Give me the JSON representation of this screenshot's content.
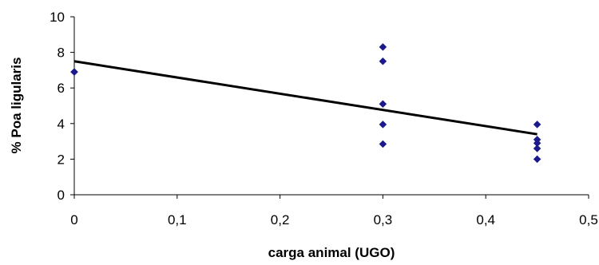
{
  "chart_data": {
    "type": "scatter",
    "xlabel": "carga animal (UGO)",
    "ylabel": "% Poa ligularis",
    "xlim": [
      0,
      0.5
    ],
    "ylim": [
      0,
      10
    ],
    "x_ticks": [
      "0",
      "0,1",
      "0,2",
      "0,3",
      "0,4",
      "0,5"
    ],
    "y_ticks": [
      "0",
      "2",
      "4",
      "6",
      "8",
      "10"
    ],
    "grid": false,
    "legend": "none",
    "series": [
      {
        "marker": "diamond",
        "color": "#1a1a8c",
        "points": [
          {
            "x": 0,
            "y": 6.9
          },
          {
            "x": 0,
            "y": 6.9
          },
          {
            "x": 0.3,
            "y": 8.3
          },
          {
            "x": 0.3,
            "y": 7.5
          },
          {
            "x": 0.3,
            "y": 5.1
          },
          {
            "x": 0.3,
            "y": 3.95
          },
          {
            "x": 0.3,
            "y": 2.85
          },
          {
            "x": 0.45,
            "y": 3.95
          },
          {
            "x": 0.45,
            "y": 3.1
          },
          {
            "x": 0.45,
            "y": 2.9
          },
          {
            "x": 0.45,
            "y": 2.6
          },
          {
            "x": 0.45,
            "y": 2.0
          }
        ]
      }
    ],
    "trendline": {
      "type": "linear",
      "color": "#000000",
      "from": {
        "x": 0,
        "y": 7.5
      },
      "to": {
        "x": 0.45,
        "y": 3.4
      }
    }
  }
}
